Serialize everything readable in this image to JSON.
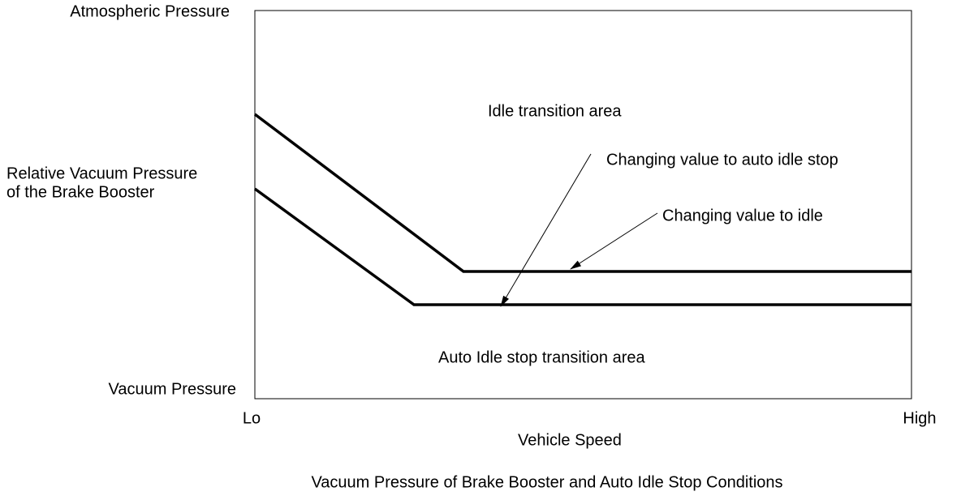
{
  "y_axis": {
    "top": "Atmospheric Pressure",
    "label_line1": "Relative Vacuum Pressure",
    "label_line2": "of the Brake Booster",
    "bottom": "Vacuum Pressure"
  },
  "x_axis": {
    "left": "Lo",
    "right": "High",
    "label": "Vehicle Speed"
  },
  "regions": {
    "upper": "Idle transition area",
    "lower": "Auto Idle stop transition area"
  },
  "annotations": {
    "auto_idle_stop": "Changing value to auto idle stop",
    "idle": "Changing value to idle"
  },
  "caption": "Vacuum Pressure of Brake Booster and Auto Idle Stop Conditions"
}
